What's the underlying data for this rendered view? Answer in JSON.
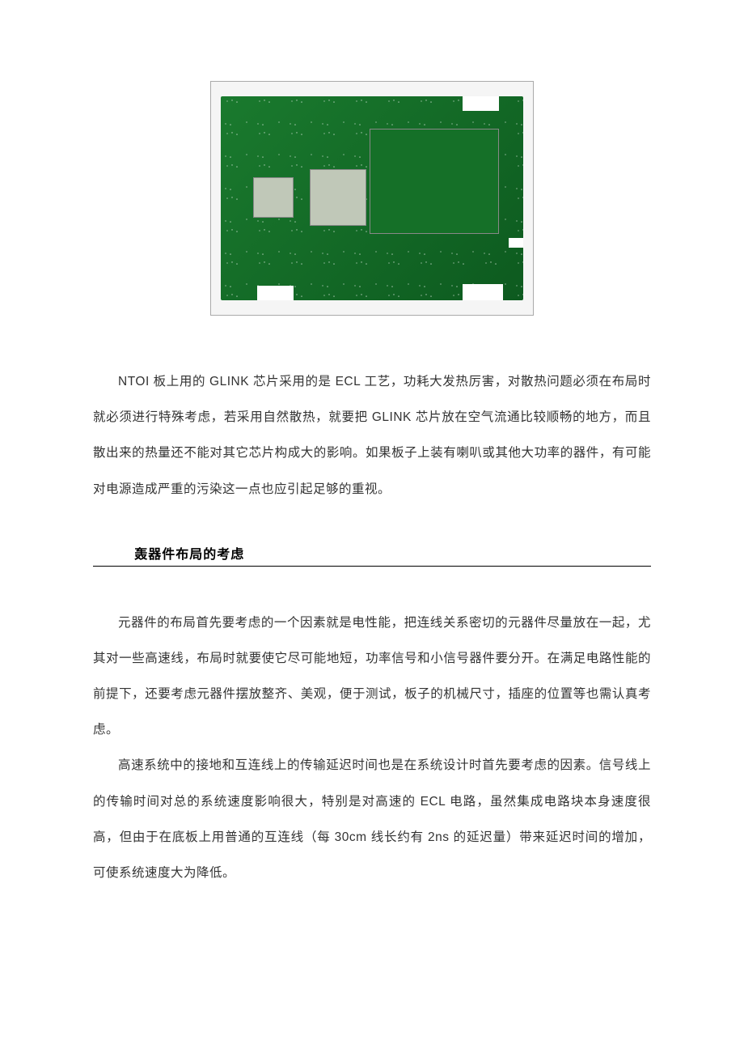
{
  "image": {
    "name": "pcb-board-photo",
    "background_color": "#f5f5f5",
    "board_gradient_start": "#1a7a2e",
    "board_gradient_end": "#0d5a1f",
    "chip_color": "#c0c8b8"
  },
  "paragraph1": "NTOI 板上用的 GLINK 芯片采用的是 ECL 工艺，功耗大发热厉害，对散热问题必须在布局时就必须进行特殊考虑，若采用自然散热，就要把 GLINK 芯片放在空气流通比较顺畅的地方，而且散出来的热量还不能对其它芯片构成大的影响。如果板子上装有喇叭或其他大功率的器件，有可能对电源造成严重的污染这一点也应引起足够的重视。",
  "section_heading": "轰器件布局的考虑",
  "paragraph2": "元器件的布局首先要考虑的一个因素就是电性能，把连线关系密切的元器件尽量放在一起，尤其对一些高速线，布局时就要使它尽可能地短，功率信号和小信号器件要分开。在满足电路性能的前提下，还要考虑元器件摆放整齐、美观，便于测试，板子的机械尺寸，插座的位置等也需认真考虑。",
  "paragraph3": "高速系统中的接地和互连线上的传输延迟时间也是在系统设计时首先要考虑的因素。信号线上的传输时间对总的系统速度影响很大，特别是对高速的 ECL 电路，虽然集成电路块本身速度很高，但由于在底板上用普通的互连线（每 30cm 线长约有 2ns 的延迟量）带来延迟时间的增加，可使系统速度大为降低。",
  "colors": {
    "text": "#333333",
    "heading": "#000000",
    "underline": "#000000",
    "page_bg": "#ffffff"
  },
  "typography": {
    "body_fontsize": 15.5,
    "heading_fontsize": 16,
    "line_height": 2.85,
    "text_indent_em": 2
  }
}
